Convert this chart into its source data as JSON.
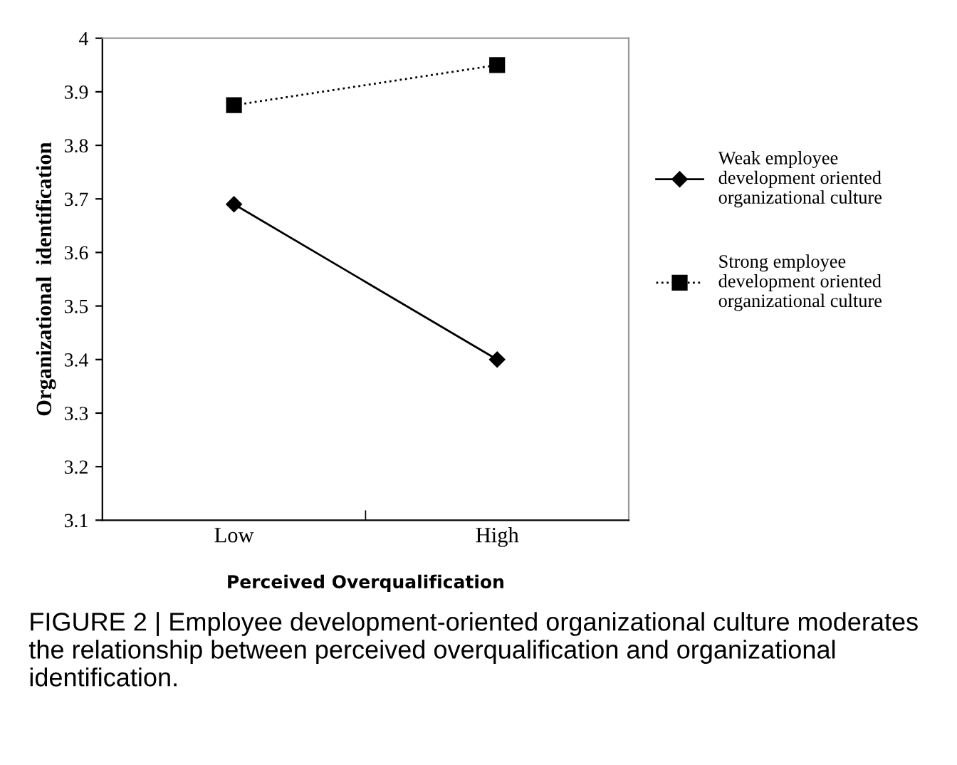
{
  "chart_data": {
    "type": "line",
    "xlabel": "Perceived Overqualification",
    "ylabel": "Organizational  identification",
    "categories": [
      "Low",
      "High"
    ],
    "series": [
      {
        "name": "Weak employee\ndevelopment oriented\norganizational culture",
        "color": "#000000",
        "values": [
          3.69,
          3.4
        ],
        "marker": "diamond",
        "line_style": "solid"
      },
      {
        "name": "Strong employee\ndevelopment oriented\norganizational culture",
        "color": "#000000",
        "values": [
          3.875,
          3.95
        ],
        "marker": "square",
        "line_style": "dotted"
      }
    ],
    "ylim": [
      3.1,
      4
    ],
    "yticks": [
      3.1,
      3.2,
      3.3,
      3.4,
      3.5,
      3.6,
      3.7,
      3.8,
      3.9,
      4
    ],
    "grid": false,
    "legend": "right",
    "annotations": [
      "FIGURE 2 | Employee development-oriented organizational culture moderates the relationship between perceived overqualification and organizational identification."
    ]
  }
}
